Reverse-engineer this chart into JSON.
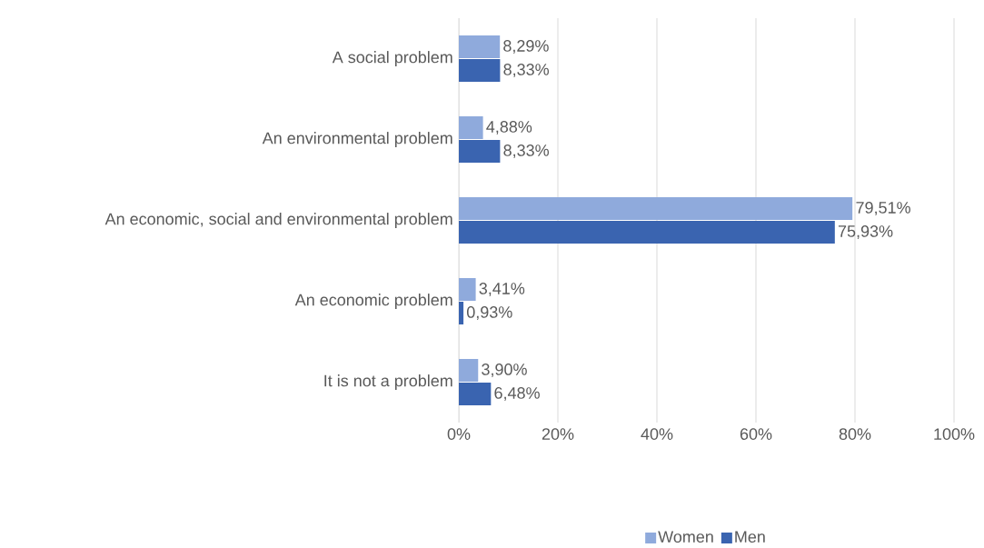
{
  "chart_data": {
    "type": "bar",
    "orientation": "horizontal",
    "categories": [
      "A social problem",
      "An environmental problem",
      "An economic, social and environmental problem",
      "An economic problem",
      "It is not a problem"
    ],
    "series": [
      {
        "name": "Women",
        "color": "#8faadc",
        "values": [
          8.29,
          4.88,
          79.51,
          3.41,
          3.9
        ],
        "value_labels": [
          "8,29%",
          "4,88%",
          "79,51%",
          "3,41%",
          "3,90%"
        ]
      },
      {
        "name": "Men",
        "color": "#3a64b0",
        "values": [
          8.33,
          8.33,
          75.93,
          0.93,
          6.48
        ],
        "value_labels": [
          "8,33%",
          "8,33%",
          "75,93%",
          "0,93%",
          "6,48%"
        ]
      }
    ],
    "xlim": [
      0,
      100
    ],
    "xticks": [
      {
        "value": 0,
        "label": "0%"
      },
      {
        "value": 20,
        "label": "20%"
      },
      {
        "value": 40,
        "label": "40%"
      },
      {
        "value": 60,
        "label": "60%"
      },
      {
        "value": 80,
        "label": "80%"
      },
      {
        "value": 100,
        "label": "100%"
      }
    ],
    "grid": "x",
    "legend": "bottom"
  }
}
